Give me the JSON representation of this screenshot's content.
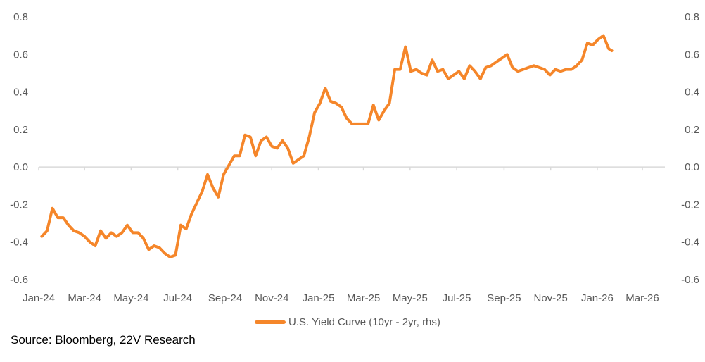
{
  "chart_data": {
    "type": "line",
    "title": "",
    "xlabel": "",
    "ylabel": "",
    "ylim": [
      -0.6,
      0.8
    ],
    "yticks": [
      "0.8",
      "0.6",
      "0.4",
      "0.2",
      "0.0",
      "-0.2",
      "-0.4",
      "-0.6"
    ],
    "ytick_values": [
      0.8,
      0.6,
      0.4,
      0.2,
      0.0,
      -0.2,
      -0.4,
      -0.6
    ],
    "xlim": [
      "2024-01-01",
      "2026-04-01"
    ],
    "xticks": [
      {
        "date": "2024-01-01",
        "label": "Jan-24"
      },
      {
        "date": "2024-03-01",
        "label": "Mar-24"
      },
      {
        "date": "2024-05-01",
        "label": "May-24"
      },
      {
        "date": "2024-07-01",
        "label": "Jul-24"
      },
      {
        "date": "2024-09-01",
        "label": "Sep-24"
      },
      {
        "date": "2024-11-01",
        "label": "Nov-24"
      },
      {
        "date": "2025-01-01",
        "label": "Jan-25"
      },
      {
        "date": "2025-03-01",
        "label": "Mar-25"
      },
      {
        "date": "2025-05-01",
        "label": "May-25"
      },
      {
        "date": "2025-07-01",
        "label": "Jul-25"
      },
      {
        "date": "2025-09-01",
        "label": "Sep-25"
      },
      {
        "date": "2025-11-01",
        "label": "Nov-25"
      },
      {
        "date": "2026-01-01",
        "label": "Jan-26"
      },
      {
        "date": "2026-03-01",
        "label": "Mar-26"
      }
    ],
    "grid": false,
    "dual_axis_labels": true,
    "legend_position": "bottom",
    "series": [
      {
        "name": "U.S. Yield Curve (10yr - 2yr, rhs)",
        "color": "#F5862A",
        "x": [
          "2024-01-05",
          "2024-01-12",
          "2024-01-19",
          "2024-01-26",
          "2024-02-02",
          "2024-02-09",
          "2024-02-16",
          "2024-02-23",
          "2024-03-01",
          "2024-03-08",
          "2024-03-15",
          "2024-03-22",
          "2024-03-29",
          "2024-04-05",
          "2024-04-12",
          "2024-04-19",
          "2024-04-26",
          "2024-05-03",
          "2024-05-10",
          "2024-05-17",
          "2024-05-24",
          "2024-05-31",
          "2024-06-07",
          "2024-06-14",
          "2024-06-21",
          "2024-06-28",
          "2024-07-05",
          "2024-07-12",
          "2024-07-19",
          "2024-07-26",
          "2024-08-02",
          "2024-08-09",
          "2024-08-16",
          "2024-08-23",
          "2024-08-30",
          "2024-09-06",
          "2024-09-13",
          "2024-09-20",
          "2024-09-27",
          "2024-10-04",
          "2024-10-11",
          "2024-10-18",
          "2024-10-25",
          "2024-11-01",
          "2024-11-08",
          "2024-11-15",
          "2024-11-22",
          "2024-11-29",
          "2024-12-06",
          "2024-12-13",
          "2024-12-20",
          "2024-12-27",
          "2025-01-03",
          "2025-01-10",
          "2025-01-17",
          "2025-01-24",
          "2025-01-31",
          "2025-02-07",
          "2025-02-14",
          "2025-02-21",
          "2025-02-28",
          "2025-03-07",
          "2025-03-14",
          "2025-03-21",
          "2025-03-28",
          "2025-04-04",
          "2025-04-11",
          "2025-04-18",
          "2025-04-25",
          "2025-05-02",
          "2025-05-09",
          "2025-05-16",
          "2025-05-23",
          "2025-05-30",
          "2025-06-06",
          "2025-06-13",
          "2025-06-20",
          "2025-06-27",
          "2025-07-04",
          "2025-07-11",
          "2025-07-18",
          "2025-07-25",
          "2025-08-01",
          "2025-08-08",
          "2025-08-15",
          "2025-08-22",
          "2025-08-29",
          "2025-09-05",
          "2025-09-12",
          "2025-09-19",
          "2025-09-26",
          "2025-10-03",
          "2025-10-10",
          "2025-10-17",
          "2025-10-24",
          "2025-10-31",
          "2025-11-07",
          "2025-11-14",
          "2025-11-21",
          "2025-11-28",
          "2025-12-05",
          "2025-12-12",
          "2025-12-19",
          "2025-12-26",
          "2026-01-02",
          "2026-01-09",
          "2026-01-16",
          "2026-01-20"
        ],
        "values": [
          -0.37,
          -0.34,
          -0.22,
          -0.27,
          -0.27,
          -0.31,
          -0.34,
          -0.35,
          -0.37,
          -0.4,
          -0.42,
          -0.34,
          -0.38,
          -0.35,
          -0.37,
          -0.35,
          -0.31,
          -0.35,
          -0.35,
          -0.38,
          -0.44,
          -0.42,
          -0.43,
          -0.46,
          -0.48,
          -0.47,
          -0.31,
          -0.33,
          -0.25,
          -0.19,
          -0.13,
          -0.04,
          -0.11,
          -0.16,
          -0.04,
          0.01,
          0.06,
          0.06,
          0.17,
          0.16,
          0.06,
          0.14,
          0.16,
          0.11,
          0.1,
          0.14,
          0.1,
          0.02,
          0.04,
          0.06,
          0.16,
          0.29,
          0.34,
          0.42,
          0.35,
          0.34,
          0.32,
          0.26,
          0.23,
          0.23,
          0.23,
          0.23,
          0.33,
          0.25,
          0.3,
          0.34,
          0.52,
          0.52,
          0.64,
          0.51,
          0.52,
          0.5,
          0.49,
          0.57,
          0.51,
          0.52,
          0.47,
          0.49,
          0.51,
          0.47,
          0.54,
          0.51,
          0.47,
          0.53,
          0.54,
          0.56,
          0.58,
          0.6,
          0.53,
          0.51,
          0.52,
          0.53,
          0.54,
          0.53,
          0.52,
          0.49,
          0.52,
          0.51,
          0.52,
          0.52,
          0.54,
          0.57,
          0.66,
          0.65,
          0.68,
          0.7,
          0.63,
          0.62
        ]
      }
    ]
  },
  "legend": {
    "label": "U.S. Yield Curve (10yr - 2yr, rhs)"
  },
  "source": "Source: Bloomberg, 22V Research",
  "colors": {
    "series": "#F5862A",
    "axis": "#D9D9D9",
    "text": "#595959"
  }
}
